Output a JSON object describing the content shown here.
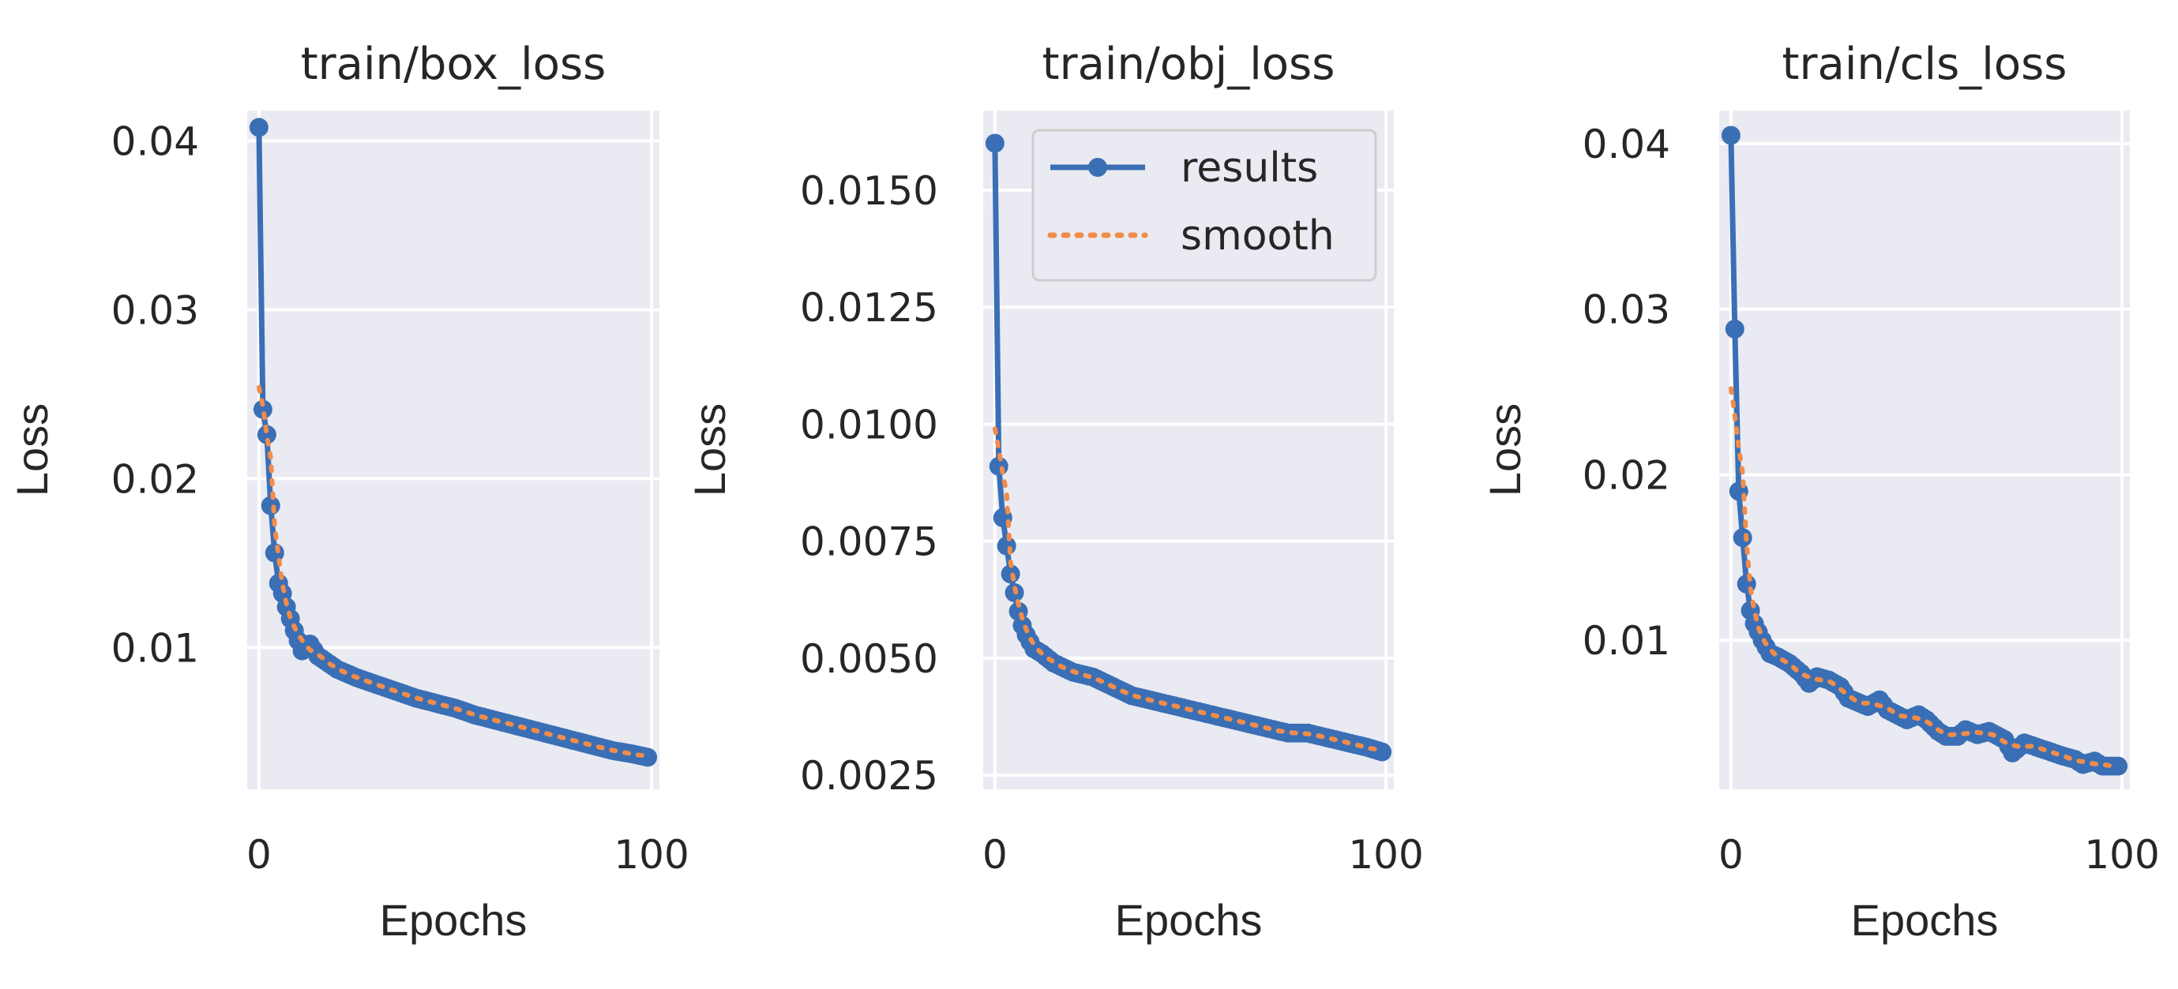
{
  "colors": {
    "results": "#3a6fb5",
    "smooth": "#f28c4a",
    "plot_background": "#eaeaf2",
    "grid": "#ffffff"
  },
  "legend": {
    "entries": [
      "results",
      "smooth"
    ]
  },
  "chart_data": [
    {
      "type": "line",
      "title": "train/box_loss",
      "xlabel": "Epochs",
      "ylabel": "Loss",
      "xlim": [
        -3,
        102
      ],
      "ylim": [
        0.0016,
        0.0418
      ],
      "xticks": [
        0,
        100
      ],
      "xtick_labels": [
        "0",
        "100"
      ],
      "yticks": [
        0.01,
        0.02,
        0.03,
        0.04
      ],
      "ytick_labels": [
        "0.01",
        "0.02",
        "0.03",
        "0.04"
      ],
      "grid": true,
      "legend": false,
      "key_points": [
        [
          0,
          0.0408
        ],
        [
          1,
          0.0241
        ],
        [
          2,
          0.0226
        ],
        [
          3,
          0.0184
        ],
        [
          4,
          0.0156
        ],
        [
          5,
          0.0138
        ],
        [
          6,
          0.0132
        ],
        [
          7,
          0.0124
        ],
        [
          8,
          0.0117
        ],
        [
          9,
          0.011
        ],
        [
          10,
          0.0104
        ],
        [
          11,
          0.0098
        ],
        [
          13,
          0.0102
        ],
        [
          15,
          0.0095
        ],
        [
          20,
          0.0087
        ],
        [
          25,
          0.0082
        ],
        [
          30,
          0.0078
        ],
        [
          35,
          0.0074
        ],
        [
          40,
          0.007
        ],
        [
          45,
          0.0067
        ],
        [
          50,
          0.0064
        ],
        [
          55,
          0.006
        ],
        [
          60,
          0.0057
        ],
        [
          65,
          0.0054
        ],
        [
          70,
          0.0051
        ],
        [
          75,
          0.0048
        ],
        [
          80,
          0.0045
        ],
        [
          85,
          0.0042
        ],
        [
          90,
          0.0039
        ],
        [
          95,
          0.0037
        ],
        [
          99,
          0.0035
        ]
      ],
      "series": [
        {
          "name": "results",
          "style": "solid-marker"
        },
        {
          "name": "smooth",
          "style": "dotted",
          "start": [
            0,
            0.0254
          ],
          "smoothing_window": 7
        }
      ]
    },
    {
      "type": "line",
      "title": "train/obj_loss",
      "xlabel": "Epochs",
      "ylabel": "Loss",
      "xlim": [
        -3,
        102
      ],
      "ylim": [
        0.0022,
        0.0167
      ],
      "xticks": [
        0,
        100
      ],
      "xtick_labels": [
        "0",
        "100"
      ],
      "yticks": [
        0.0025,
        0.005,
        0.0075,
        0.01,
        0.0125,
        0.015
      ],
      "ytick_labels": [
        "0.0025",
        "0.0050",
        "0.0075",
        "0.0100",
        "0.0125",
        "0.0150"
      ],
      "grid": true,
      "legend": true,
      "legend_position": "top-right",
      "key_points": [
        [
          0,
          0.016
        ],
        [
          1,
          0.0091
        ],
        [
          2,
          0.008
        ],
        [
          3,
          0.0074
        ],
        [
          4,
          0.0068
        ],
        [
          5,
          0.0064
        ],
        [
          6,
          0.006
        ],
        [
          7,
          0.0057
        ],
        [
          8,
          0.0055
        ],
        [
          10,
          0.0052
        ],
        [
          12,
          0.0051
        ],
        [
          15,
          0.0049
        ],
        [
          20,
          0.0047
        ],
        [
          25,
          0.0046
        ],
        [
          30,
          0.0044
        ],
        [
          35,
          0.0042
        ],
        [
          40,
          0.0041
        ],
        [
          45,
          0.004
        ],
        [
          50,
          0.0039
        ],
        [
          55,
          0.0038
        ],
        [
          60,
          0.0037
        ],
        [
          65,
          0.0036
        ],
        [
          70,
          0.0035
        ],
        [
          75,
          0.0034
        ],
        [
          80,
          0.0034
        ],
        [
          85,
          0.0033
        ],
        [
          90,
          0.0032
        ],
        [
          95,
          0.0031
        ],
        [
          99,
          0.003
        ]
      ],
      "series": [
        {
          "name": "results",
          "style": "solid-marker"
        },
        {
          "name": "smooth",
          "style": "dotted",
          "start": [
            0,
            0.0099
          ],
          "smoothing_window": 7
        }
      ]
    },
    {
      "type": "line",
      "title": "train/cls_loss",
      "xlabel": "Epochs",
      "ylabel": "Loss",
      "xlim": [
        -3,
        102
      ],
      "ylim": [
        0.001,
        0.042
      ],
      "xticks": [
        0,
        100
      ],
      "xtick_labels": [
        "0",
        "100"
      ],
      "yticks": [
        0.01,
        0.02,
        0.03,
        0.04
      ],
      "ytick_labels": [
        "0.01",
        "0.02",
        "0.03",
        "0.04"
      ],
      "grid": true,
      "legend": false,
      "key_points": [
        [
          0,
          0.0405
        ],
        [
          1,
          0.0288
        ],
        [
          2,
          0.019
        ],
        [
          3,
          0.0162
        ],
        [
          4,
          0.0134
        ],
        [
          5,
          0.0118
        ],
        [
          6,
          0.011
        ],
        [
          7,
          0.0105
        ],
        [
          8,
          0.01
        ],
        [
          10,
          0.0092
        ],
        [
          12,
          0.009
        ],
        [
          15,
          0.0086
        ],
        [
          18,
          0.008
        ],
        [
          20,
          0.0074
        ],
        [
          22,
          0.0078
        ],
        [
          25,
          0.0076
        ],
        [
          28,
          0.0072
        ],
        [
          30,
          0.0065
        ],
        [
          35,
          0.006
        ],
        [
          38,
          0.0064
        ],
        [
          40,
          0.0058
        ],
        [
          45,
          0.0052
        ],
        [
          48,
          0.0055
        ],
        [
          50,
          0.0052
        ],
        [
          53,
          0.0045
        ],
        [
          55,
          0.0042
        ],
        [
          58,
          0.0042
        ],
        [
          60,
          0.0046
        ],
        [
          63,
          0.0043
        ],
        [
          66,
          0.0045
        ],
        [
          70,
          0.004
        ],
        [
          72,
          0.0032
        ],
        [
          75,
          0.0038
        ],
        [
          80,
          0.0034
        ],
        [
          85,
          0.003
        ],
        [
          88,
          0.0028
        ],
        [
          90,
          0.0025
        ],
        [
          93,
          0.0027
        ],
        [
          95,
          0.0024
        ],
        [
          99,
          0.0024
        ]
      ],
      "series": [
        {
          "name": "results",
          "style": "solid-marker"
        },
        {
          "name": "smooth",
          "style": "dotted",
          "start": [
            0,
            0.0252
          ],
          "smoothing_window": 7
        }
      ]
    }
  ]
}
